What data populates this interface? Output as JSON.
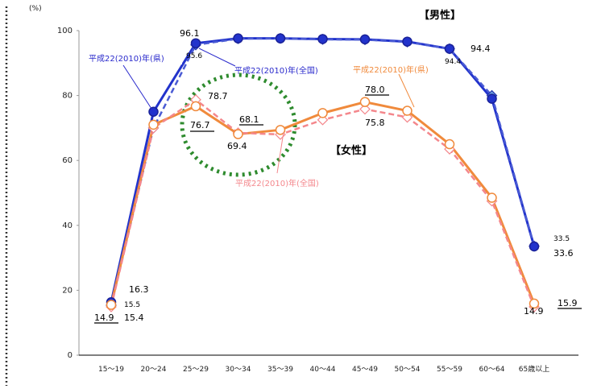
{
  "chart_data": {
    "type": "line",
    "y_unit": "(%)",
    "ylim": [
      0,
      100
    ],
    "y_ticks": [
      0,
      20,
      40,
      60,
      80,
      100
    ],
    "categories": [
      "15～19",
      "20～24",
      "25～29",
      "30～34",
      "35～39",
      "40～44",
      "45～49",
      "50～54",
      "55～59",
      "60～64",
      "65歳以上"
    ],
    "grid": false,
    "section_labels": {
      "male": "【男性】",
      "female": "【女性】"
    },
    "series": [
      {
        "name": "平成22(2010)年(県)",
        "group": "male",
        "scope": "pref",
        "color": "#2233cc",
        "values": [
          16.3,
          75.0,
          96.1,
          97.6,
          97.6,
          97.4,
          97.3,
          96.6,
          94.4,
          79.0,
          33.5
        ]
      },
      {
        "name": "平成22(2010)年(全国)",
        "group": "male",
        "scope": "national",
        "color": "#4a5bd4",
        "values": [
          15.4,
          70.0,
          95.6,
          97.5,
          97.6,
          97.3,
          97.2,
          96.5,
          94.4,
          80.0,
          33.6
        ]
      },
      {
        "name": "平成22(2010)年(県)",
        "group": "female",
        "scope": "pref",
        "color": "#f08a3c",
        "values": [
          15.5,
          71.0,
          76.7,
          68.1,
          69.4,
          74.6,
          78.0,
          75.3,
          65.0,
          48.5,
          15.9
        ]
      },
      {
        "name": "平成22(2010)年(全国)",
        "group": "female",
        "scope": "national",
        "color": "#f4878c",
        "values": [
          14.9,
          70.0,
          78.7,
          68.5,
          68.0,
          72.5,
          75.8,
          73.3,
          63.5,
          47.5,
          14.9
        ]
      }
    ],
    "data_labels": [
      {
        "text": "96.1",
        "underline": false
      },
      {
        "text": "95.6",
        "underline": false
      },
      {
        "text": "94.4",
        "underline": false
      },
      {
        "text": "94.4",
        "underline": false
      },
      {
        "text": "78.7",
        "underline": false
      },
      {
        "text": "76.7",
        "underline": true
      },
      {
        "text": "68.1",
        "underline": true
      },
      {
        "text": "69.4",
        "underline": false
      },
      {
        "text": "78.0",
        "underline": true
      },
      {
        "text": "75.8",
        "underline": false
      },
      {
        "text": "16.3",
        "underline": false
      },
      {
        "text": "15.5",
        "underline": false
      },
      {
        "text": "14.9",
        "underline": true
      },
      {
        "text": "15.4",
        "underline": false
      },
      {
        "text": "33.5",
        "underline": false
      },
      {
        "text": "33.6",
        "underline": false
      },
      {
        "text": "14.9",
        "underline": false
      },
      {
        "text": "15.9",
        "underline": true
      }
    ],
    "callouts": [
      {
        "text": "平成22(2010)年(県)",
        "color": "#2a2acc"
      },
      {
        "text": "平成22(2010)年(全国)",
        "color": "#2a2acc"
      },
      {
        "text": "平成22(2010)年(県)",
        "color": "#f08a3c"
      },
      {
        "text": "平成22(2010)年(全国)",
        "color": "#f4878c"
      }
    ]
  }
}
